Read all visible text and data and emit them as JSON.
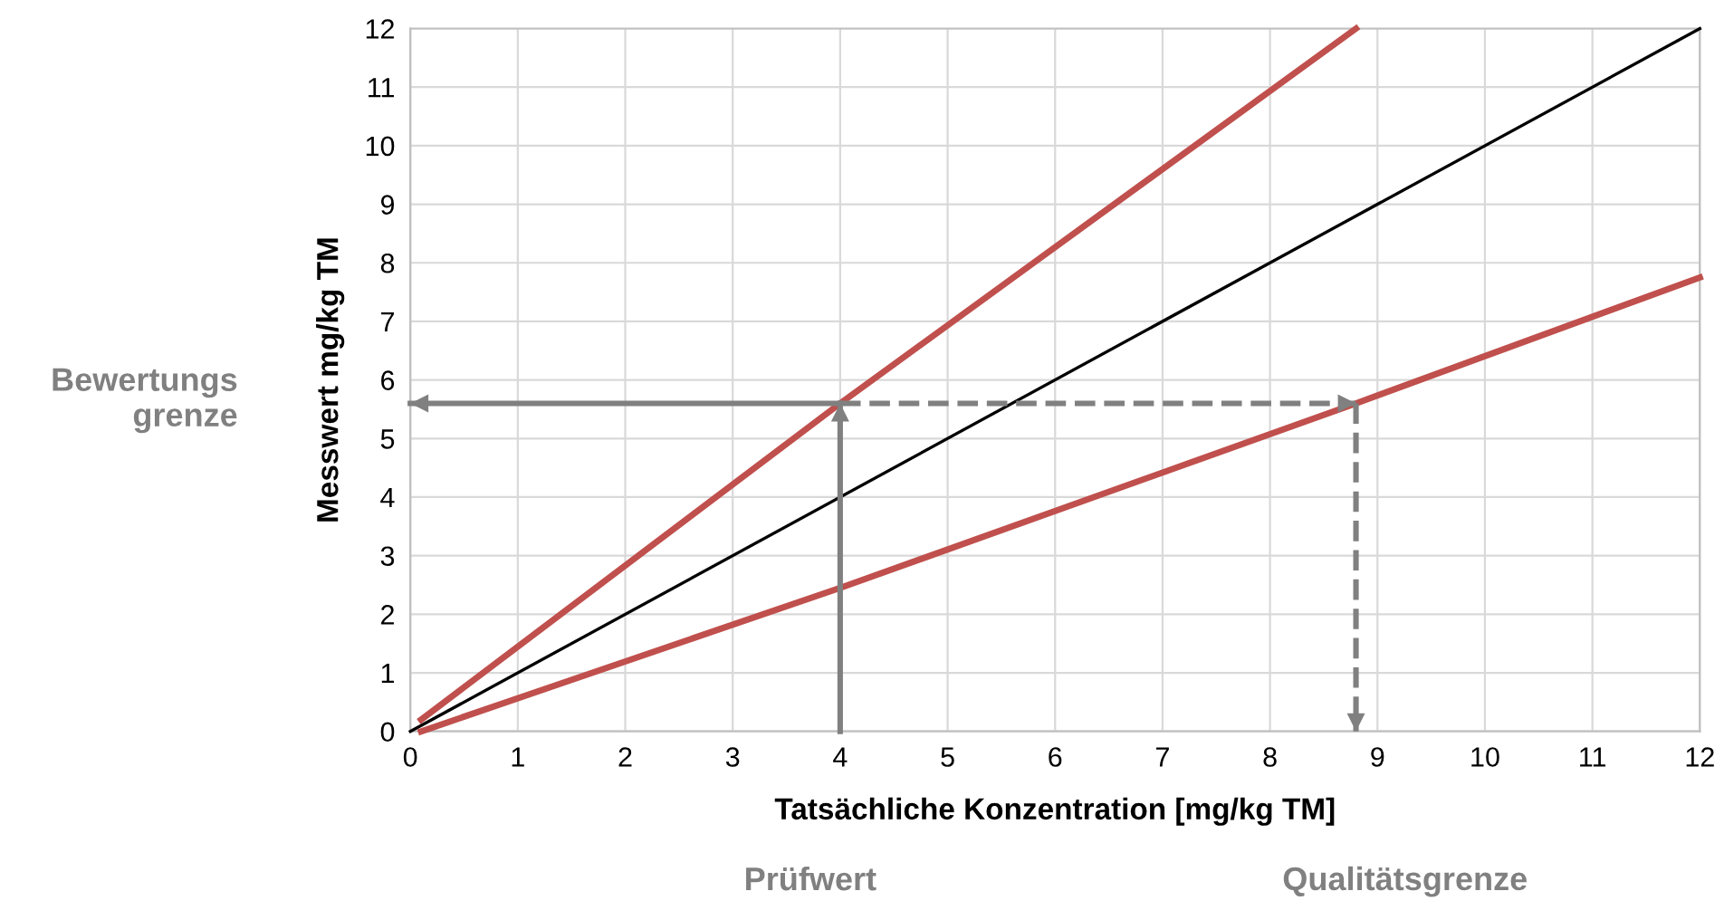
{
  "chart_data": {
    "type": "line",
    "xlabel": "Tatsächliche Konzentration [mg/kg TM]",
    "ylabel": "Messwert mg/kg TM",
    "xlim": [
      0,
      12
    ],
    "ylim": [
      0,
      12
    ],
    "xticks": [
      0,
      1,
      2,
      3,
      4,
      5,
      6,
      7,
      8,
      9,
      10,
      11,
      12
    ],
    "yticks": [
      0,
      1,
      2,
      3,
      4,
      5,
      6,
      7,
      8,
      9,
      10,
      11,
      12
    ],
    "grid": true,
    "line_style": "solid",
    "series": [
      {
        "color": "#c0504d",
        "x": [
          0.1,
          4,
          8.8
        ],
        "values": [
          0.2,
          5.6,
          12
        ]
      },
      {
        "color": "#000000",
        "x": [
          0,
          12
        ],
        "values": [
          0,
          12
        ]
      },
      {
        "color": "#c0504d",
        "x": [
          0.1,
          4,
          8.8,
          12
        ],
        "values": [
          0,
          2.45,
          5.6,
          7.75
        ]
      },
      {
        "color": "#808080",
        "x": [
          4,
          4
        ],
        "values": [
          0,
          5.6
        ]
      },
      {
        "color": "#808080",
        "x": [
          4,
          0
        ],
        "values": [
          5.6,
          5.6
        ]
      },
      {
        "color": "#808080",
        "x": [
          4,
          8.8
        ],
        "values": [
          5.6,
          5.6
        ],
        "line_style": "dashed"
      },
      {
        "color": "#808080",
        "x": [
          8.8,
          8.8
        ],
        "values": [
          5.6,
          0
        ],
        "line_style": "dashed"
      }
    ],
    "annotations": [
      "Bewertungs\ngrenze",
      "Prüfwert",
      "Qualitätsgrenze"
    ]
  }
}
